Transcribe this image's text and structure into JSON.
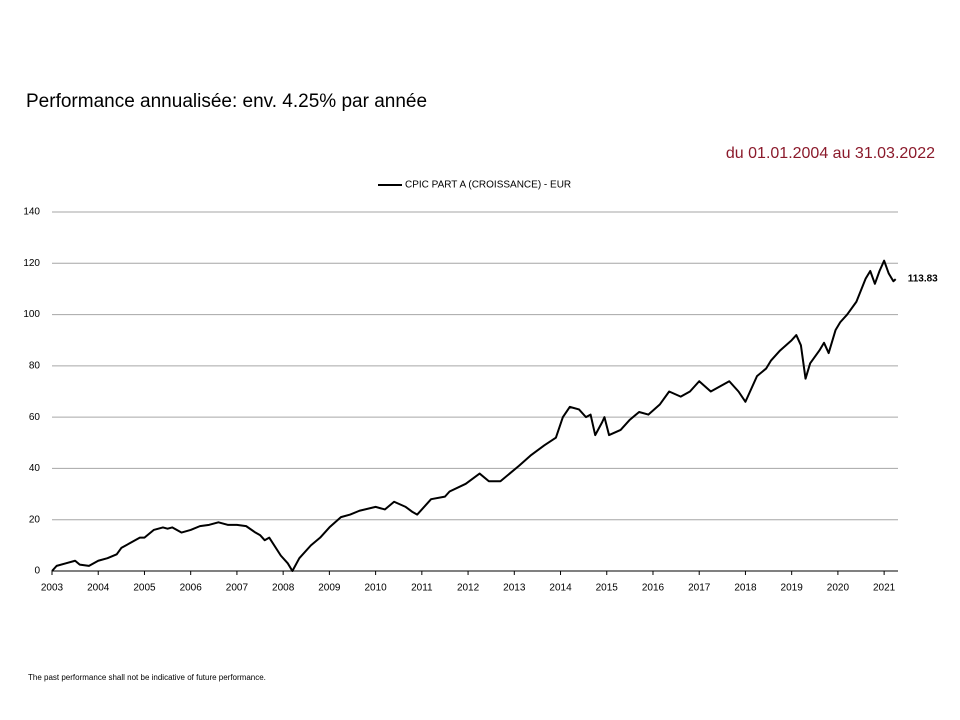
{
  "chart_data": {
    "type": "line",
    "title": "Performance annualisée: env. 4.25% par année",
    "subtitle": "du 01.01.2004 au 31.03.2022",
    "x": [
      2003.0,
      2003.1,
      2003.3,
      2003.5,
      2003.6,
      2003.8,
      2004.0,
      2004.2,
      2004.4,
      2004.5,
      2004.7,
      2004.9,
      2005.0,
      2005.2,
      2005.4,
      2005.5,
      2005.6,
      2005.8,
      2006.0,
      2006.2,
      2006.4,
      2006.6,
      2006.8,
      2007.0,
      2007.2,
      2007.4,
      2007.5,
      2007.6,
      2007.7,
      2007.95,
      2008.1,
      2008.2,
      2008.35,
      2008.6,
      2008.8,
      2009.0,
      2009.25,
      2009.45,
      2009.65,
      2010.0,
      2010.2,
      2010.4,
      2010.65,
      2010.8,
      2010.9,
      2011.2,
      2011.5,
      2011.6,
      2011.95,
      2012.25,
      2012.45,
      2012.7,
      2012.9,
      2013.1,
      2013.35,
      2013.65,
      2013.9,
      2014.05,
      2014.2,
      2014.4,
      2014.55,
      2014.65,
      2014.75,
      2014.9,
      2014.95,
      2015.05,
      2015.3,
      2015.5,
      2015.7,
      2015.9,
      2016.15,
      2016.35,
      2016.6,
      2016.8,
      2017.0,
      2017.25,
      2017.45,
      2017.65,
      2017.85,
      2018.0,
      2018.25,
      2018.45,
      2018.55,
      2018.75,
      2019.0,
      2019.1,
      2019.2,
      2019.3,
      2019.4,
      2019.6,
      2019.7,
      2019.8,
      2019.95,
      2020.05,
      2020.2,
      2020.4,
      2020.6,
      2020.7,
      2020.8,
      2020.9,
      2021.0,
      2021.1,
      2021.2,
      2021.25
    ],
    "series": [
      {
        "name": "CPIC PART A (CROISSANCE) - EUR",
        "color": "#000000",
        "values": [
          0,
          2,
          3,
          4,
          2.5,
          2,
          4,
          5,
          6.5,
          9,
          11,
          13,
          13,
          16,
          17,
          16.5,
          17,
          15,
          16,
          17.5,
          18,
          19,
          18,
          18,
          17.5,
          15,
          14,
          12,
          13,
          6,
          3,
          0,
          5,
          10,
          13,
          17,
          21,
          22,
          23.5,
          25,
          24,
          27,
          25,
          23,
          22,
          28,
          29,
          31,
          34,
          38,
          35,
          35,
          38,
          41,
          45,
          49,
          52,
          60,
          64,
          63,
          60,
          61,
          53,
          58,
          60,
          53,
          55,
          59,
          62,
          61,
          65,
          70,
          68,
          70,
          74,
          70,
          72,
          74,
          70,
          66,
          76,
          79,
          82,
          86,
          90,
          92,
          88,
          75,
          81,
          86,
          89,
          85,
          94,
          97,
          100,
          105,
          114,
          117,
          112,
          117,
          121,
          116,
          113,
          113.83
        ]
      }
    ],
    "xlim": [
      2003,
      2021.3
    ],
    "xticks": [
      2003,
      2004,
      2005,
      2006,
      2007,
      2008,
      2009,
      2010,
      2011,
      2012,
      2013,
      2014,
      2015,
      2016,
      2017,
      2018,
      2019,
      2020,
      2021
    ],
    "ylim": [
      0,
      140
    ],
    "yticks": [
      0,
      20,
      40,
      60,
      80,
      100,
      120,
      140
    ],
    "grid": true
  },
  "footnote": "The past performance shall not be indicative of future performance."
}
